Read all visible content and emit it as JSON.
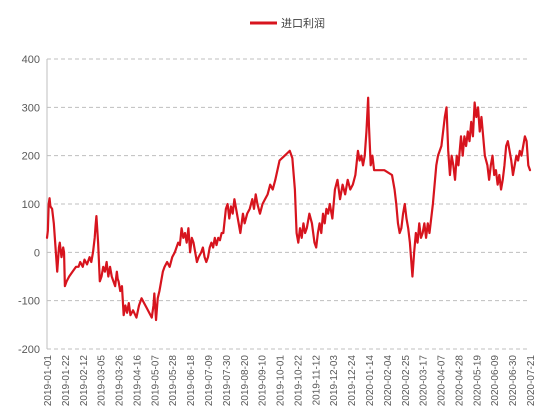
{
  "chart_data": {
    "type": "line",
    "title": "",
    "legend": {
      "position": "top-center",
      "entries": [
        "进口利润"
      ]
    },
    "series": [
      {
        "name": "进口利润",
        "color": "#d7141e",
        "points": [
          [
            "2019-01-01",
            30
          ],
          [
            "2019-01-02",
            45
          ],
          [
            "2019-01-03",
            100
          ],
          [
            "2019-01-04",
            112
          ],
          [
            "2019-01-05",
            95
          ],
          [
            "2019-01-07",
            90
          ],
          [
            "2019-01-09",
            60
          ],
          [
            "2019-01-11",
            10
          ],
          [
            "2019-01-13",
            -40
          ],
          [
            "2019-01-15",
            10
          ],
          [
            "2019-01-16",
            20
          ],
          [
            "2019-01-18",
            -10
          ],
          [
            "2019-01-20",
            10
          ],
          [
            "2019-01-21",
            0
          ],
          [
            "2019-01-22",
            -70
          ],
          [
            "2019-01-24",
            -60
          ],
          [
            "2019-01-27",
            -50
          ],
          [
            "2019-01-31",
            -40
          ],
          [
            "2019-02-04",
            -30
          ],
          [
            "2019-02-07",
            -30
          ],
          [
            "2019-02-09",
            -20
          ],
          [
            "2019-02-12",
            -30
          ],
          [
            "2019-02-14",
            -15
          ],
          [
            "2019-02-17",
            -25
          ],
          [
            "2019-02-20",
            -10
          ],
          [
            "2019-02-22",
            -20
          ],
          [
            "2019-02-24",
            0
          ],
          [
            "2019-02-26",
            30
          ],
          [
            "2019-02-27",
            55
          ],
          [
            "2019-02-28",
            75
          ],
          [
            "2019-03-02",
            20
          ],
          [
            "2019-03-04",
            -60
          ],
          [
            "2019-03-06",
            -50
          ],
          [
            "2019-03-08",
            -30
          ],
          [
            "2019-03-10",
            -40
          ],
          [
            "2019-03-12",
            -20
          ],
          [
            "2019-03-14",
            -50
          ],
          [
            "2019-03-16",
            -30
          ],
          [
            "2019-03-18",
            -50
          ],
          [
            "2019-03-20",
            -60
          ],
          [
            "2019-03-22",
            -70
          ],
          [
            "2019-03-24",
            -40
          ],
          [
            "2019-03-25",
            -55
          ],
          [
            "2019-03-26",
            -60
          ],
          [
            "2019-03-28",
            -80
          ],
          [
            "2019-03-30",
            -70
          ],
          [
            "2019-04-01",
            -130
          ],
          [
            "2019-04-03",
            -110
          ],
          [
            "2019-04-05",
            -125
          ],
          [
            "2019-04-07",
            -105
          ],
          [
            "2019-04-09",
            -130
          ],
          [
            "2019-04-12",
            -120
          ],
          [
            "2019-04-16",
            -135
          ],
          [
            "2019-04-19",
            -110
          ],
          [
            "2019-04-22",
            -95
          ],
          [
            "2019-04-25",
            -105
          ],
          [
            "2019-04-28",
            -115
          ],
          [
            "2019-05-01",
            -125
          ],
          [
            "2019-05-04",
            -135
          ],
          [
            "2019-05-06",
            -110
          ],
          [
            "2019-05-07",
            -85
          ],
          [
            "2019-05-09",
            -140
          ],
          [
            "2019-05-11",
            -95
          ],
          [
            "2019-05-13",
            -80
          ],
          [
            "2019-05-15",
            -60
          ],
          [
            "2019-05-17",
            -40
          ],
          [
            "2019-05-19",
            -30
          ],
          [
            "2019-05-22",
            -20
          ],
          [
            "2019-05-25",
            -30
          ],
          [
            "2019-05-28",
            -10
          ],
          [
            "2019-05-31",
            0
          ],
          [
            "2019-06-02",
            10
          ],
          [
            "2019-06-04",
            20
          ],
          [
            "2019-06-06",
            15
          ],
          [
            "2019-06-08",
            50
          ],
          [
            "2019-06-10",
            30
          ],
          [
            "2019-06-12",
            40
          ],
          [
            "2019-06-14",
            20
          ],
          [
            "2019-06-16",
            50
          ],
          [
            "2019-06-18",
            0
          ],
          [
            "2019-06-20",
            30
          ],
          [
            "2019-06-22",
            20
          ],
          [
            "2019-06-24",
            0
          ],
          [
            "2019-06-26",
            -20
          ],
          [
            "2019-06-28",
            -10
          ],
          [
            "2019-07-01",
            0
          ],
          [
            "2019-07-03",
            10
          ],
          [
            "2019-07-05",
            -10
          ],
          [
            "2019-07-07",
            -20
          ],
          [
            "2019-07-09",
            -10
          ],
          [
            "2019-07-11",
            10
          ],
          [
            "2019-07-13",
            20
          ],
          [
            "2019-07-15",
            10
          ],
          [
            "2019-07-17",
            30
          ],
          [
            "2019-07-19",
            15
          ],
          [
            "2019-07-21",
            30
          ],
          [
            "2019-07-23",
            25
          ],
          [
            "2019-07-25",
            40
          ],
          [
            "2019-07-27",
            40
          ],
          [
            "2019-07-30",
            90
          ],
          [
            "2019-08-01",
            100
          ],
          [
            "2019-08-03",
            70
          ],
          [
            "2019-08-05",
            95
          ],
          [
            "2019-08-07",
            80
          ],
          [
            "2019-08-09",
            110
          ],
          [
            "2019-08-11",
            90
          ],
          [
            "2019-08-13",
            70
          ],
          [
            "2019-08-16",
            40
          ],
          [
            "2019-08-19",
            80
          ],
          [
            "2019-08-21",
            60
          ],
          [
            "2019-08-24",
            80
          ],
          [
            "2019-08-27",
            90
          ],
          [
            "2019-08-30",
            110
          ],
          [
            "2019-09-01",
            90
          ],
          [
            "2019-09-03",
            120
          ],
          [
            "2019-09-05",
            100
          ],
          [
            "2019-09-08",
            80
          ],
          [
            "2019-09-11",
            100
          ],
          [
            "2019-09-14",
            110
          ],
          [
            "2019-09-17",
            120
          ],
          [
            "2019-09-20",
            140
          ],
          [
            "2019-09-23",
            130
          ],
          [
            "2019-09-26",
            150
          ],
          [
            "2019-10-01",
            190
          ],
          [
            "2019-10-04",
            195
          ],
          [
            "2019-10-07",
            200
          ],
          [
            "2019-10-10",
            205
          ],
          [
            "2019-10-13",
            210
          ],
          [
            "2019-10-16",
            195
          ],
          [
            "2019-10-19",
            130
          ],
          [
            "2019-10-21",
            40
          ],
          [
            "2019-10-23",
            20
          ],
          [
            "2019-10-25",
            50
          ],
          [
            "2019-10-27",
            30
          ],
          [
            "2019-10-29",
            60
          ],
          [
            "2019-10-31",
            40
          ],
          [
            "2019-11-02",
            50
          ],
          [
            "2019-11-05",
            80
          ],
          [
            "2019-11-08",
            60
          ],
          [
            "2019-11-11",
            20
          ],
          [
            "2019-11-13",
            10
          ],
          [
            "2019-11-15",
            40
          ],
          [
            "2019-11-17",
            60
          ],
          [
            "2019-11-19",
            40
          ],
          [
            "2019-11-21",
            80
          ],
          [
            "2019-11-23",
            60
          ],
          [
            "2019-11-25",
            90
          ],
          [
            "2019-11-27",
            80
          ],
          [
            "2019-11-29",
            100
          ],
          [
            "2019-12-02",
            70
          ],
          [
            "2019-12-05",
            130
          ],
          [
            "2019-12-08",
            150
          ],
          [
            "2019-12-11",
            110
          ],
          [
            "2019-12-14",
            140
          ],
          [
            "2019-12-17",
            120
          ],
          [
            "2019-12-20",
            150
          ],
          [
            "2019-12-23",
            130
          ],
          [
            "2019-12-26",
            140
          ],
          [
            "2019-12-29",
            160
          ],
          [
            "2020-01-01",
            210
          ],
          [
            "2020-01-03",
            190
          ],
          [
            "2020-01-05",
            200
          ],
          [
            "2020-01-07",
            180
          ],
          [
            "2020-01-09",
            200
          ],
          [
            "2020-01-11",
            250
          ],
          [
            "2020-01-13",
            320
          ],
          [
            "2020-01-14",
            260
          ],
          [
            "2020-01-16",
            180
          ],
          [
            "2020-01-18",
            200
          ],
          [
            "2020-01-20",
            170
          ],
          [
            "2020-02-01",
            170
          ],
          [
            "2020-02-10",
            160
          ],
          [
            "2020-02-13",
            130
          ],
          [
            "2020-02-15",
            100
          ],
          [
            "2020-02-17",
            60
          ],
          [
            "2020-02-19",
            40
          ],
          [
            "2020-02-21",
            50
          ],
          [
            "2020-02-23",
            80
          ],
          [
            "2020-02-25",
            100
          ],
          [
            "2020-02-27",
            70
          ],
          [
            "2020-02-29",
            50
          ],
          [
            "2020-03-02",
            20
          ],
          [
            "2020-03-05",
            -50
          ],
          [
            "2020-03-07",
            0
          ],
          [
            "2020-03-09",
            40
          ],
          [
            "2020-03-11",
            20
          ],
          [
            "2020-03-13",
            60
          ],
          [
            "2020-03-15",
            30
          ],
          [
            "2020-03-17",
            40
          ],
          [
            "2020-03-19",
            60
          ],
          [
            "2020-03-21",
            30
          ],
          [
            "2020-03-23",
            60
          ],
          [
            "2020-03-25",
            40
          ],
          [
            "2020-03-29",
            100
          ],
          [
            "2020-04-02",
            180
          ],
          [
            "2020-04-04",
            200
          ],
          [
            "2020-04-06",
            210
          ],
          [
            "2020-04-08",
            220
          ],
          [
            "2020-04-10",
            250
          ],
          [
            "2020-04-12",
            280
          ],
          [
            "2020-04-14",
            300
          ],
          [
            "2020-04-16",
            210
          ],
          [
            "2020-04-18",
            160
          ],
          [
            "2020-04-20",
            200
          ],
          [
            "2020-04-22",
            180
          ],
          [
            "2020-04-24",
            150
          ],
          [
            "2020-04-26",
            200
          ],
          [
            "2020-04-28",
            180
          ],
          [
            "2020-05-01",
            240
          ],
          [
            "2020-05-03",
            200
          ],
          [
            "2020-05-05",
            240
          ],
          [
            "2020-05-07",
            220
          ],
          [
            "2020-05-09",
            250
          ],
          [
            "2020-05-11",
            230
          ],
          [
            "2020-05-13",
            270
          ],
          [
            "2020-05-15",
            240
          ],
          [
            "2020-05-17",
            310
          ],
          [
            "2020-05-19",
            280
          ],
          [
            "2020-05-21",
            300
          ],
          [
            "2020-05-23",
            250
          ],
          [
            "2020-05-25",
            280
          ],
          [
            "2020-05-27",
            240
          ],
          [
            "2020-05-29",
            200
          ],
          [
            "2020-06-01",
            180
          ],
          [
            "2020-06-03",
            150
          ],
          [
            "2020-06-05",
            180
          ],
          [
            "2020-06-07",
            200
          ],
          [
            "2020-06-09",
            160
          ],
          [
            "2020-06-11",
            170
          ],
          [
            "2020-06-13",
            140
          ],
          [
            "2020-06-15",
            160
          ],
          [
            "2020-06-17",
            130
          ],
          [
            "2020-06-19",
            150
          ],
          [
            "2020-06-21",
            180
          ],
          [
            "2020-06-23",
            220
          ],
          [
            "2020-06-25",
            230
          ],
          [
            "2020-06-27",
            210
          ],
          [
            "2020-06-29",
            190
          ],
          [
            "2020-07-01",
            160
          ],
          [
            "2020-07-03",
            180
          ],
          [
            "2020-07-05",
            200
          ],
          [
            "2020-07-07",
            190
          ],
          [
            "2020-07-09",
            210
          ],
          [
            "2020-07-11",
            200
          ],
          [
            "2020-07-13",
            220
          ],
          [
            "2020-07-15",
            240
          ],
          [
            "2020-07-17",
            230
          ],
          [
            "2020-07-19",
            180
          ],
          [
            "2020-07-21",
            170
          ]
        ]
      }
    ],
    "xaxis": {
      "ticks": [
        "2019-01-01",
        "2019-01-22",
        "2019-02-12",
        "2019-03-05",
        "2019-03-26",
        "2019-04-16",
        "2019-05-07",
        "2019-05-28",
        "2019-06-18",
        "2019-07-09",
        "2019-07-30",
        "2019-08-20",
        "2019-09-10",
        "2019-10-01",
        "2019-10-22",
        "2019-11-12",
        "2019-12-03",
        "2019-12-24",
        "2020-01-14",
        "2020-02-04",
        "2020-02-25",
        "2020-03-17",
        "2020-04-07",
        "2020-04-28",
        "2020-05-19",
        "2020-06-09",
        "2020-06-30",
        "2020-07-21"
      ],
      "range": [
        "2019-01-01",
        "2020-07-21"
      ],
      "label_rotation": "vertical"
    },
    "yaxis": {
      "ticks": [
        -200,
        -100,
        0,
        100,
        200,
        300,
        400
      ],
      "range": [
        -200,
        400
      ]
    },
    "grid": {
      "horizontal": "dashed",
      "vertical": false
    }
  }
}
